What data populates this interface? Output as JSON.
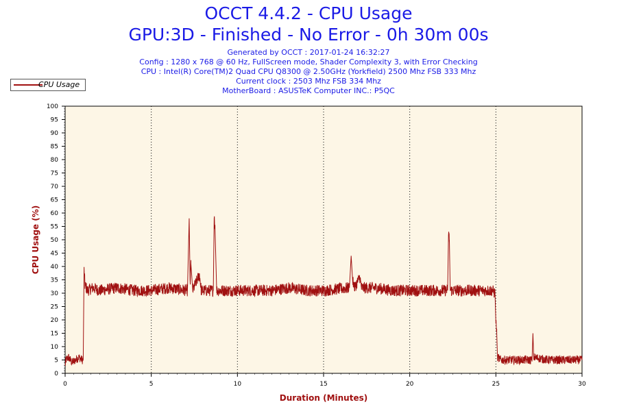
{
  "header": {
    "title_line1": "OCCT 4.4.2 - CPU Usage",
    "title_line2": "GPU:3D - Finished - No Error - 0h 30m 00s",
    "generated": "Generated by OCCT : 2017-01-24 16:32:27",
    "config": "Config : 1280 x 768 @ 60 Hz, FullScreen mode, Shader Complexity 3, with Error Checking",
    "cpu": "CPU : Intel(R) Core(TM)2 Quad CPU Q8300 @ 2.50GHz (Yorkfield) 2500 Mhz FSB 333 Mhz",
    "clock": "Current clock : 2503 Mhz FSB 334 Mhz",
    "motherboard": "MotherBoard : ASUSTeK Computer INC.: P5QC"
  },
  "colors": {
    "series": "#a01010",
    "plot_background": "#fdf6e6",
    "title": "#1a1ae6"
  },
  "chart_data": {
    "type": "line",
    "xlabel": "Duration (Minutes)",
    "ylabel": "CPU Usage (%)",
    "xlim": [
      0,
      30
    ],
    "ylim": [
      0,
      100
    ],
    "x_ticks": [
      0,
      5,
      10,
      15,
      20,
      25,
      30
    ],
    "y_ticks": [
      0,
      5,
      10,
      15,
      20,
      25,
      30,
      35,
      40,
      45,
      50,
      55,
      60,
      65,
      70,
      75,
      80,
      85,
      90,
      95,
      100
    ],
    "grid": "vertical dotted at major x ticks",
    "legend": "top-left",
    "series": [
      {
        "name": "CPU Usage",
        "points": [
          [
            0.0,
            3
          ],
          [
            0.05,
            5
          ],
          [
            0.2,
            6
          ],
          [
            0.4,
            4
          ],
          [
            0.6,
            5
          ],
          [
            0.8,
            6
          ],
          [
            1.0,
            5
          ],
          [
            1.05,
            5
          ],
          [
            1.1,
            39
          ],
          [
            1.15,
            33
          ],
          [
            1.3,
            31
          ],
          [
            1.6,
            32
          ],
          [
            2.0,
            31
          ],
          [
            3.0,
            32
          ],
          [
            4.0,
            31
          ],
          [
            5.0,
            31
          ],
          [
            6.0,
            32
          ],
          [
            7.1,
            31
          ],
          [
            7.2,
            58
          ],
          [
            7.25,
            33
          ],
          [
            7.3,
            41
          ],
          [
            7.4,
            31
          ],
          [
            7.8,
            37
          ],
          [
            7.9,
            31
          ],
          [
            8.6,
            31
          ],
          [
            8.65,
            60
          ],
          [
            8.7,
            54
          ],
          [
            8.8,
            31
          ],
          [
            10.0,
            31
          ],
          [
            11.0,
            31
          ],
          [
            12.0,
            31
          ],
          [
            13.0,
            32
          ],
          [
            14.0,
            31
          ],
          [
            15.0,
            31
          ],
          [
            16.5,
            32
          ],
          [
            16.6,
            44
          ],
          [
            16.7,
            35
          ],
          [
            16.8,
            32
          ],
          [
            17.1,
            36
          ],
          [
            17.2,
            32
          ],
          [
            18.0,
            32
          ],
          [
            19.0,
            31
          ],
          [
            20.0,
            31
          ],
          [
            21.0,
            31
          ],
          [
            22.0,
            31
          ],
          [
            22.2,
            31
          ],
          [
            22.25,
            53
          ],
          [
            22.3,
            50
          ],
          [
            22.35,
            31
          ],
          [
            23.0,
            31
          ],
          [
            24.0,
            31
          ],
          [
            24.8,
            31
          ],
          [
            24.95,
            30
          ],
          [
            25.0,
            20
          ],
          [
            25.05,
            15
          ],
          [
            25.1,
            6
          ],
          [
            25.3,
            5
          ],
          [
            26.0,
            5
          ],
          [
            27.0,
            5
          ],
          [
            27.1,
            5
          ],
          [
            27.15,
            15
          ],
          [
            27.2,
            6
          ],
          [
            28.0,
            5
          ],
          [
            29.0,
            5
          ],
          [
            30.0,
            5
          ]
        ]
      }
    ]
  }
}
